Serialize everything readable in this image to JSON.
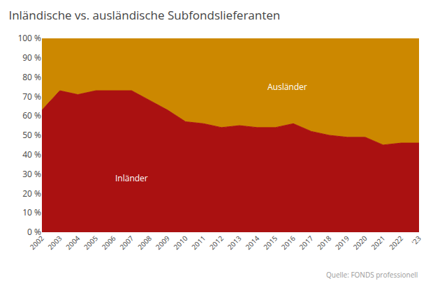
{
  "chart_data": {
    "type": "area",
    "title": "Inländische vs. ausländische Subfondslieferanten",
    "annotations": [
      "Quelle: FONDS professionell"
    ],
    "stacked": true,
    "grid": true,
    "x": [
      2002,
      2003,
      2004,
      2005,
      2006,
      2007,
      2008,
      2009,
      2010,
      2011,
      2012,
      2013,
      2014,
      2015,
      2016,
      2017,
      2018,
      2019,
      2020,
      2021,
      2022,
      2023
    ],
    "series": [
      {
        "name": "Inländer",
        "color": "#aa1111",
        "values": [
          63,
          73,
          71,
          73,
          73,
          73,
          68,
          63,
          57,
          56,
          54,
          55,
          54,
          54,
          56,
          52,
          50,
          49,
          49,
          45,
          46,
          46
        ]
      },
      {
        "name": "Ausländer",
        "color": "#cc8800",
        "values": [
          37,
          27,
          29,
          27,
          27,
          27,
          32,
          37,
          43,
          44,
          46,
          45,
          46,
          46,
          44,
          48,
          50,
          51,
          51,
          55,
          54,
          54
        ]
      }
    ],
    "xlim": [
      2002,
      2023
    ],
    "xticks": [
      2002,
      2003,
      2004,
      2005,
      2006,
      2007,
      2008,
      2009,
      2010,
      2011,
      2012,
      2013,
      2014,
      2015,
      2016,
      2017,
      2018,
      2019,
      2020,
      2021,
      2022,
      {
        "value": 2023,
        "label": "'23"
      }
    ],
    "ylim": [
      0,
      100
    ],
    "yticks": [
      {
        "value": 0,
        "label": "0 %"
      },
      {
        "value": 10,
        "label": "10 %"
      },
      {
        "value": 20,
        "label": "20 %"
      },
      {
        "value": 30,
        "label": "30 %"
      },
      {
        "value": 40,
        "label": "40 %"
      },
      {
        "value": 50,
        "label": "50 %"
      },
      {
        "value": 60,
        "label": "60 %"
      },
      {
        "value": 70,
        "label": "70 %"
      },
      {
        "value": 80,
        "label": "80 %"
      },
      {
        "value": 90,
        "label": "90 %"
      },
      {
        "value": 100,
        "label": "100 %"
      }
    ]
  }
}
